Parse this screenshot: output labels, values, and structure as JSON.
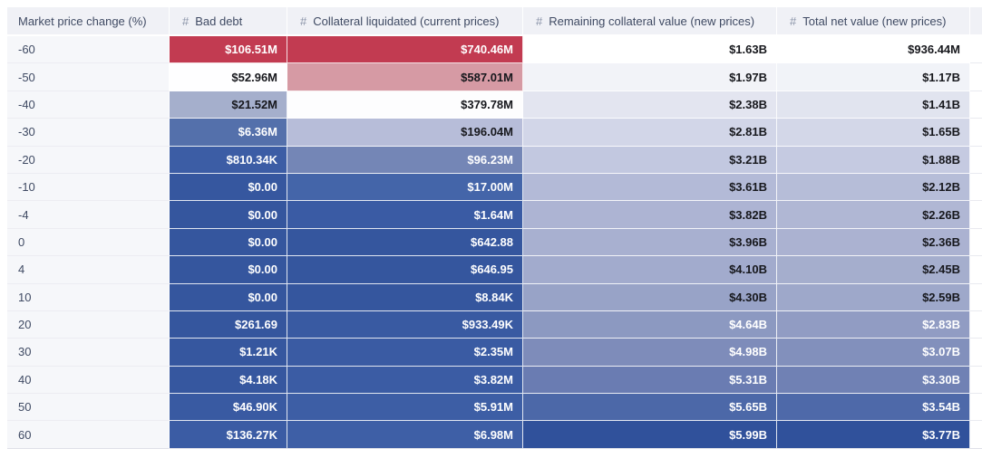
{
  "chart_data": {
    "type": "table",
    "style": "heatmap",
    "title": "",
    "columns": [
      "Market price change (%)",
      "Bad debt",
      "Collateral liquidated (current prices)",
      "Remaining collateral value (new prices)",
      "Total net value (new prices)"
    ],
    "rows": [
      [
        "-60",
        "$106.51M",
        "$740.46M",
        "$1.63B",
        "$936.44M"
      ],
      [
        "-50",
        "$52.96M",
        "$587.01M",
        "$1.97B",
        "$1.17B"
      ],
      [
        "-40",
        "$21.52M",
        "$379.78M",
        "$2.38B",
        "$1.41B"
      ],
      [
        "-30",
        "$6.36M",
        "$196.04M",
        "$2.81B",
        "$1.65B"
      ],
      [
        "-20",
        "$810.34K",
        "$96.23M",
        "$3.21B",
        "$1.88B"
      ],
      [
        "-10",
        "$0.00",
        "$17.00M",
        "$3.61B",
        "$2.12B"
      ],
      [
        "-4",
        "$0.00",
        "$1.64M",
        "$3.82B",
        "$2.26B"
      ],
      [
        "0",
        "$0.00",
        "$642.88",
        "$3.96B",
        "$2.36B"
      ],
      [
        "4",
        "$0.00",
        "$646.95",
        "$4.10B",
        "$2.45B"
      ],
      [
        "10",
        "$0.00",
        "$8.84K",
        "$4.30B",
        "$2.59B"
      ],
      [
        "20",
        "$261.69",
        "$933.49K",
        "$4.64B",
        "$2.83B"
      ],
      [
        "30",
        "$1.21K",
        "$2.35M",
        "$4.98B",
        "$3.07B"
      ],
      [
        "40",
        "$4.18K",
        "$3.82M",
        "$5.31B",
        "$3.30B"
      ],
      [
        "50",
        "$46.90K",
        "$5.91M",
        "$5.65B",
        "$3.54B"
      ],
      [
        "60",
        "$136.27K",
        "$6.98M",
        "$5.99B",
        "$3.77B"
      ]
    ],
    "colormap": "diverging red-white-blue, normalized per column (high = red, low = blue)"
  },
  "heatmap": {
    "cell_bg": [
      [
        "#c23b51",
        "#c23b51",
        "#ffffff",
        "#ffffff"
      ],
      [
        "#fefeff",
        "#d69aa4",
        "#f2f3f8",
        "#f1f3f8"
      ],
      [
        "#a5afcc",
        "#fdfdfe",
        "#e3e5f0",
        "#e1e4ef"
      ],
      [
        "#5470ab",
        "#b7bdd9",
        "#d2d6e8",
        "#d3d7e8"
      ],
      [
        "#3c5da5",
        "#7486b6",
        "#c2c8e0",
        "#c5cae1"
      ],
      [
        "#36579f",
        "#4465a9",
        "#b3bad7",
        "#b6bdd8"
      ],
      [
        "#35569e",
        "#3a5ba4",
        "#adb4d3",
        "#b0b7d4"
      ],
      [
        "#35569e",
        "#35569e",
        "#a8b0d0",
        "#abb2d1"
      ],
      [
        "#35569e",
        "#35569e",
        "#a2abcd",
        "#a5aecd"
      ],
      [
        "#35569e",
        "#35569e",
        "#98a3c7",
        "#9ea8ca"
      ],
      [
        "#35569e",
        "#395aa2",
        "#8c99c1",
        "#919cc3"
      ],
      [
        "#36579f",
        "#3a5ba3",
        "#7e8cba",
        "#8290bc"
      ],
      [
        "#36579f",
        "#3b5ca4",
        "#6a7cb2",
        "#7081b4"
      ],
      [
        "#395aa2",
        "#3d5ea5",
        "#4c68a8",
        "#4e69a9"
      ],
      [
        "#3b5ca4",
        "#3e5fa6",
        "#30519b",
        "#30519b"
      ]
    ],
    "cell_fg": [
      [
        "light",
        "light",
        "dark",
        "dark"
      ],
      [
        "dark",
        "dark",
        "dark",
        "dark"
      ],
      [
        "dark",
        "dark",
        "dark",
        "dark"
      ],
      [
        "light",
        "dark",
        "dark",
        "dark"
      ],
      [
        "light",
        "light",
        "dark",
        "dark"
      ],
      [
        "light",
        "light",
        "dark",
        "dark"
      ],
      [
        "light",
        "light",
        "dark",
        "dark"
      ],
      [
        "light",
        "light",
        "dark",
        "dark"
      ],
      [
        "light",
        "light",
        "dark",
        "dark"
      ],
      [
        "light",
        "light",
        "dark",
        "dark"
      ],
      [
        "light",
        "light",
        "light",
        "light"
      ],
      [
        "light",
        "light",
        "light",
        "light"
      ],
      [
        "light",
        "light",
        "light",
        "light"
      ],
      [
        "light",
        "light",
        "light",
        "light"
      ],
      [
        "light",
        "light",
        "light",
        "light"
      ]
    ]
  },
  "table": {
    "hash": "#"
  },
  "colors": {
    "header_bg": "#f0f1f6",
    "label_column_bg": "#f6f7fa",
    "header_text": "#3f4a63",
    "hash_icon": "#8a93a8",
    "dark_cell_text": "#17181d",
    "light_cell_text": "#ffffff",
    "max_red": "#c23b51",
    "max_blue": "#30519b",
    "bottom_border": "#dfe0e8"
  }
}
